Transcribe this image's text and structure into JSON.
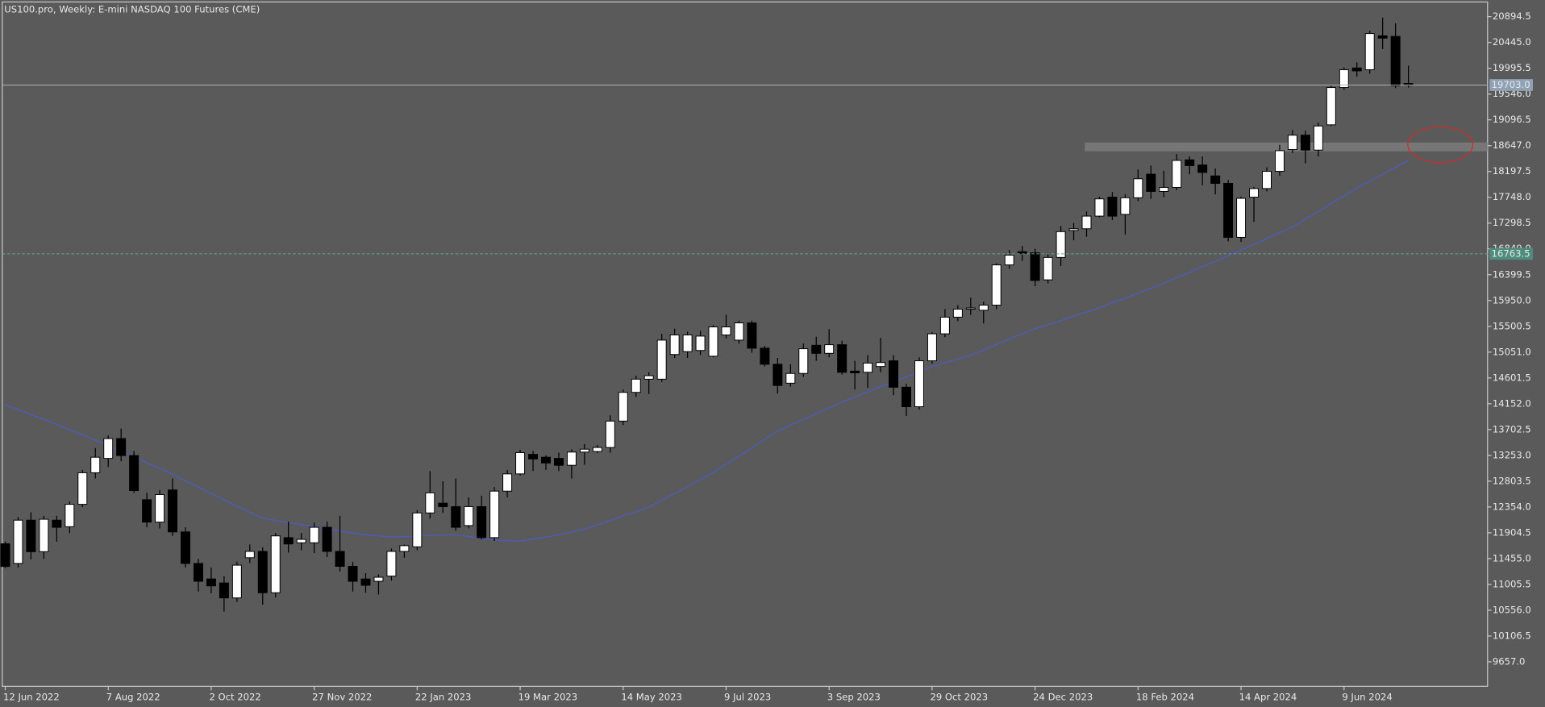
{
  "chart_data": {
    "type": "candlestick",
    "title": "US100.pro, Weekly:  E-mini NASDAQ 100 Futures (CME)",
    "categories": [
      "12 Jun 2022",
      null,
      null,
      null,
      null,
      null,
      null,
      null,
      "7 Aug 2022",
      null,
      null,
      null,
      null,
      null,
      null,
      null,
      "2 Oct 2022",
      null,
      null,
      null,
      null,
      null,
      null,
      null,
      "27 Nov 2022",
      null,
      null,
      null,
      null,
      null,
      null,
      null,
      "22 Jan 2023",
      null,
      null,
      null,
      null,
      null,
      null,
      null,
      "19 Mar 2023",
      null,
      null,
      null,
      null,
      null,
      null,
      null,
      "14 May 2023",
      null,
      null,
      null,
      null,
      null,
      null,
      null,
      "9 Jul 2023",
      null,
      null,
      null,
      null,
      null,
      null,
      null,
      "3 Sep 2023",
      null,
      null,
      null,
      null,
      null,
      null,
      null,
      "29 Oct 2023",
      null,
      null,
      null,
      null,
      null,
      null,
      null,
      "24 Dec 2023",
      null,
      null,
      null,
      null,
      null,
      null,
      null,
      "18 Feb 2024",
      null,
      null,
      null,
      null,
      null,
      null,
      null,
      "14 Apr 2024",
      null,
      null,
      null,
      null,
      null,
      null,
      null,
      "9 Jun 2024",
      null,
      null,
      null,
      null,
      null
    ],
    "open": [
      11712,
      11370,
      12124,
      11575,
      12124,
      12010,
      12400,
      12950,
      13200,
      13545,
      13250,
      12480,
      12090,
      12650,
      11920,
      11370,
      11100,
      11030,
      10770,
      11470,
      11580,
      10860,
      11820,
      11730,
      11730,
      12000,
      11580,
      11320,
      11100,
      11060,
      11150,
      11580,
      11660,
      12250,
      12420,
      12360,
      12030,
      12360,
      11820,
      12630,
      12930,
      13270,
      13220,
      13200,
      13080,
      13310,
      13320,
      13390,
      13850,
      14350,
      14580,
      14580,
      15010,
      15060,
      15080,
      14980,
      15350,
      15260,
      15560,
      15120,
      14840,
      14510,
      14680,
      15170,
      15030,
      15180,
      14720,
      14700,
      14800,
      14900,
      14440,
      14100,
      14900,
      15370,
      15660,
      15800,
      15780,
      15870,
      16570,
      16800,
      16780,
      16310,
      16700,
      17170,
      17200,
      17420,
      17750,
      17450,
      17740,
      18150,
      17850,
      17920,
      18400,
      18310,
      18120,
      17990,
      17050,
      17750,
      17900,
      18200,
      18580,
      18830,
      18570,
      19010,
      19660,
      20000,
      19970,
      20560,
      20550,
      19730
    ],
    "high": [
      11750,
      12180,
      12260,
      12200,
      12200,
      12450,
      13000,
      13380,
      13600,
      13720,
      13330,
      12600,
      12650,
      12850,
      12000,
      11450,
      11300,
      11150,
      11400,
      11700,
      11650,
      11900,
      12100,
      11900,
      12080,
      12100,
      12200,
      11400,
      11200,
      11180,
      11630,
      11700,
      12300,
      12980,
      12800,
      12850,
      12520,
      12550,
      12700,
      13000,
      13350,
      13330,
      13250,
      13300,
      13360,
      13450,
      13430,
      13950,
      14400,
      14640,
      14700,
      15370,
      15460,
      15410,
      15420,
      15520,
      15700,
      15600,
      15600,
      15160,
      14950,
      14840,
      15200,
      15320,
      15450,
      15250,
      14900,
      15000,
      15300,
      15000,
      14500,
      14960,
      15400,
      15800,
      15870,
      16000,
      15930,
      16600,
      16830,
      16900,
      16850,
      16780,
      17250,
      17300,
      17500,
      17760,
      17840,
      17800,
      18230,
      18300,
      18210,
      18500,
      18460,
      18460,
      18250,
      18050,
      17760,
      17930,
      18270,
      18660,
      18920,
      18910,
      19050,
      19700,
      20010,
      20100,
      20650,
      20880,
      20780,
      20040
    ],
    "low": [
      11290,
      11300,
      11440,
      11450,
      11750,
      11900,
      12350,
      12850,
      13050,
      13150,
      12600,
      12000,
      11980,
      11850,
      11300,
      10880,
      10850,
      10530,
      10700,
      11380,
      10650,
      10780,
      11560,
      11600,
      11550,
      11480,
      11230,
      10880,
      10860,
      10830,
      11070,
      11470,
      11600,
      12150,
      12250,
      11940,
      11980,
      11790,
      11760,
      12520,
      12900,
      12980,
      13000,
      12980,
      12850,
      13090,
      13290,
      13300,
      13780,
      14270,
      14320,
      14530,
      14950,
      14950,
      15000,
      14960,
      15290,
      15200,
      15040,
      14800,
      14330,
      14450,
      14620,
      14900,
      14960,
      14660,
      14400,
      14430,
      14700,
      14300,
      13940,
      14050,
      14850,
      15310,
      15590,
      15700,
      15550,
      15800,
      16500,
      16640,
      16200,
      16250,
      16550,
      17000,
      17060,
      17400,
      17350,
      17100,
      17680,
      17720,
      17750,
      17870,
      18150,
      17960,
      17800,
      16980,
      16970,
      17320,
      17850,
      18120,
      18520,
      18340,
      18460,
      18990,
      19620,
      19850,
      19900,
      20330,
      19650,
      19660
    ],
    "close": [
      11318,
      12124,
      11575,
      12140,
      12000,
      12400,
      12950,
      13220,
      13545,
      13250,
      12640,
      12090,
      12570,
      11920,
      11370,
      11060,
      10980,
      10770,
      11340,
      11580,
      10860,
      11850,
      11710,
      11790,
      12000,
      11580,
      11320,
      11060,
      10990,
      11130,
      11580,
      11680,
      12250,
      12600,
      12360,
      12000,
      12360,
      11820,
      12630,
      12930,
      13300,
      13190,
      13120,
      13080,
      13310,
      13360,
      13390,
      13850,
      14350,
      14580,
      14640,
      15260,
      15350,
      15350,
      15330,
      15490,
      15490,
      15560,
      15120,
      14840,
      14470,
      14680,
      15110,
      15030,
      15180,
      14700,
      14690,
      14860,
      14870,
      14440,
      14100,
      14900,
      15370,
      15660,
      15800,
      15820,
      15870,
      16570,
      16740,
      16770,
      16300,
      16700,
      17150,
      17200,
      17420,
      17720,
      17420,
      17740,
      18070,
      17850,
      17920,
      18390,
      18300,
      18180,
      17990,
      17050,
      17730,
      17900,
      18200,
      18560,
      18830,
      18570,
      18990,
      19660,
      19970,
      19950,
      20600,
      20520,
      19690,
      19700
    ],
    "up_color": "#ffffff",
    "down_color": "#000000",
    "wick_color": "#000000",
    "moving_average": {
      "color": "#4a5cc4",
      "values": [
        14130,
        14050,
        13960,
        13880,
        13790,
        13700,
        13610,
        13520,
        13420,
        13330,
        13230,
        13120,
        13030,
        12920,
        12810,
        12700,
        12590,
        12480,
        12370,
        12260,
        12160,
        12120,
        12080,
        12050,
        12010,
        11970,
        11940,
        11900,
        11870,
        11850,
        11830,
        11840,
        11850,
        11860,
        11860,
        11870,
        11840,
        11810,
        11780,
        11770,
        11760,
        11790,
        11830,
        11870,
        11920,
        11970,
        12040,
        12120,
        12200,
        12270,
        12350,
        12470,
        12590,
        12710,
        12830,
        12950,
        13100,
        13240,
        13390,
        13530,
        13680,
        13780,
        13880,
        13980,
        14080,
        14180,
        14270,
        14360,
        14450,
        14530,
        14620,
        14710,
        14800,
        14870,
        14930,
        15000,
        15090,
        15180,
        15280,
        15370,
        15460,
        15530,
        15600,
        15680,
        15750,
        15820,
        15910,
        15990,
        16080,
        16160,
        16250,
        16350,
        16440,
        16540,
        16630,
        16730,
        16830,
        16930,
        17030,
        17130,
        17230,
        17370,
        17500,
        17640,
        17770,
        17910,
        18030,
        18150,
        18270,
        18390
      ]
    },
    "zone": {
      "low": 18548,
      "high": 18702,
      "color": "#7b7b7b"
    },
    "price_lines": [
      {
        "value": 19703,
        "label": "19703.0",
        "color": "#b0b0b0",
        "box_color": "#8fa2b6",
        "dashed": false
      },
      {
        "value": 16763.5,
        "color": "#6aa091",
        "box_color": "#4e8c7e",
        "dashed": true
      }
    ],
    "ylim": [
      9230,
      21150
    ],
    "yticks": [
      20894.5,
      {
        "value": 20445,
        "label": "20445.0"
      },
      19995.5,
      {
        "value": 19546,
        "label": "19546.0"
      },
      19096.5,
      {
        "value": 18647,
        "label": "18647.0"
      },
      18197.5,
      {
        "value": 17748,
        "label": "17748.0"
      },
      17298.5,
      {
        "value": 16849,
        "label": "16849.0"
      },
      16399.5,
      {
        "value": 15950,
        "label": "15950.0"
      },
      15500.5,
      {
        "value": 15051,
        "label": "15051.0"
      },
      14601.5,
      {
        "value": 14152,
        "label": "14152.0"
      },
      13702.5,
      {
        "value": 13253,
        "label": "13253.0"
      },
      12803.5,
      {
        "value": 12354,
        "label": "12354.0"
      },
      11904.5,
      {
        "value": 11455,
        "label": "11455.0"
      },
      11005.5,
      {
        "value": 10556,
        "label": "10556.0"
      },
      10106.5,
      {
        "value": 9657,
        "label": "9657.0"
      }
    ],
    "background": "#5a5a5a",
    "grid": false
  }
}
